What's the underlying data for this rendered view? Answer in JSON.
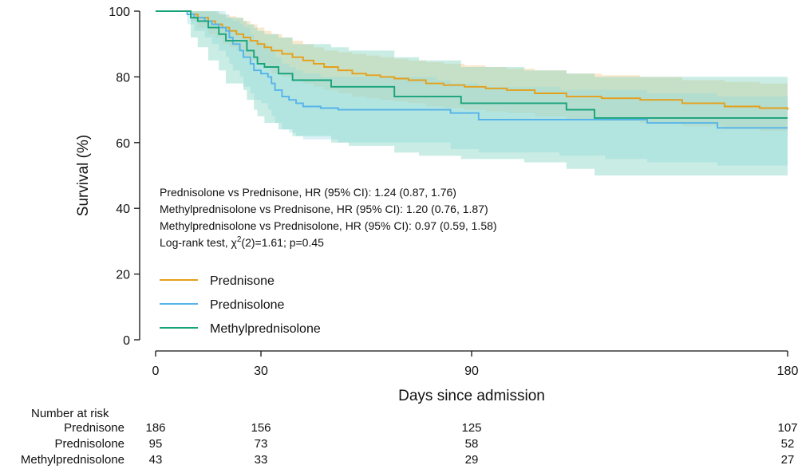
{
  "chart_data": {
    "type": "line",
    "title": "",
    "xlabel": "Days since admission",
    "ylabel": "Survival (%)",
    "xlim": [
      0,
      180
    ],
    "ylim": [
      0,
      100
    ],
    "x_ticks": [
      0,
      30,
      90,
      180
    ],
    "y_ticks": [
      0,
      20,
      40,
      60,
      80,
      100
    ],
    "grid": false,
    "legend_position": "bottom-left inside",
    "series": [
      {
        "name": "Prednisone",
        "color": "#E69F1A",
        "band_color": "#F2C98A",
        "x": [
          0,
          7,
          10,
          12,
          15,
          17,
          19,
          21,
          23,
          25,
          27,
          29,
          31,
          33,
          36,
          39,
          42,
          45,
          48,
          52,
          56,
          60,
          64,
          68,
          72,
          77,
          82,
          88,
          94,
          100,
          108,
          117,
          127,
          138,
          150,
          162,
          172,
          180
        ],
        "y": [
          100,
          100,
          99,
          98,
          97,
          96,
          95,
          94,
          93,
          92,
          91,
          90,
          89,
          88,
          87,
          86,
          85,
          84,
          83,
          82,
          81,
          80.5,
          80,
          79.5,
          79,
          78,
          77.5,
          77,
          76.5,
          76,
          75,
          74,
          73.5,
          73,
          72,
          71,
          70.5,
          70
        ],
        "lower": [
          100,
          100,
          97,
          95,
          93,
          92,
          90,
          89,
          88,
          86,
          85,
          84,
          83,
          81,
          80,
          79,
          78,
          77,
          76,
          75,
          74,
          73.5,
          73,
          72.5,
          72,
          71,
          70.5,
          70,
          69.5,
          69,
          68,
          67,
          66.5,
          66,
          65,
          64,
          63.5,
          63
        ],
        "upper": [
          100,
          100,
          100,
          100,
          100,
          99.5,
          99,
          98.5,
          98,
          97,
          96,
          95,
          94,
          93,
          92,
          91,
          90,
          89,
          88,
          87.5,
          87,
          86.5,
          86,
          85.5,
          85,
          84.5,
          84,
          83.5,
          83,
          82.5,
          82,
          81,
          80.5,
          80,
          79,
          78.5,
          78,
          77.5
        ]
      },
      {
        "name": "Prednisolone",
        "color": "#56B4E9",
        "band_color": "#A8DDEE",
        "x": [
          0,
          7,
          9,
          11,
          14,
          16,
          18,
          20,
          21,
          22,
          24,
          25,
          27,
          28,
          30,
          32,
          33,
          34,
          36,
          38,
          40,
          42,
          47,
          52,
          60,
          80,
          84,
          92,
          115,
          128,
          140,
          160,
          180
        ],
        "y": [
          100,
          100,
          99,
          98,
          97,
          96,
          95,
          94,
          92,
          90,
          88,
          86,
          84,
          82,
          81,
          80,
          78,
          76,
          74,
          73,
          72,
          71,
          70.5,
          70,
          70,
          70,
          69,
          67,
          67,
          67,
          66,
          64.5,
          64.5
        ],
        "lower": [
          100,
          100,
          96,
          94,
          92,
          90,
          88,
          86,
          84,
          82,
          80,
          77,
          75,
          73,
          72,
          70,
          68,
          66,
          64,
          63,
          62,
          61,
          61,
          60,
          60,
          60,
          58,
          57,
          56,
          55,
          54,
          53,
          52
        ],
        "upper": [
          100,
          100,
          100,
          100,
          100,
          100,
          100,
          99,
          98,
          97,
          96,
          95,
          93,
          91,
          90,
          89,
          88,
          86,
          84,
          83,
          82,
          81,
          80,
          80,
          80,
          79,
          78,
          77,
          76,
          76,
          75,
          74,
          74
        ]
      },
      {
        "name": "Methylprednisolone",
        "color": "#17A37A",
        "band_color": "#7FD3BE",
        "x": [
          0,
          8,
          10,
          12,
          15,
          18,
          20,
          25,
          26,
          28,
          29,
          31,
          35,
          39,
          50,
          55,
          68,
          75,
          87,
          105,
          117,
          125,
          180
        ],
        "y": [
          100,
          100,
          98,
          97,
          95,
          93,
          91,
          91,
          88,
          86,
          84,
          83,
          81,
          79,
          77,
          77,
          74,
          74,
          72,
          72,
          70,
          67.5,
          67.5
        ],
        "lower": [
          100,
          100,
          92,
          89,
          85,
          82,
          78,
          76,
          73,
          70,
          68,
          66,
          64,
          62,
          60,
          59,
          57,
          56,
          55,
          54,
          52,
          50,
          50
        ],
        "upper": [
          100,
          100,
          100,
          100,
          100,
          99,
          98,
          97,
          96,
          95,
          94,
          93,
          92,
          90,
          89,
          88,
          86,
          85,
          83,
          82,
          81,
          80,
          80
        ]
      }
    ],
    "annotations": [
      "Prednisolone vs Prednisone, HR (95% CI): 1.24 (0.87, 1.76)",
      "Methylprednisolone vs Prednisone, HR (95% CI): 1.20 (0.76, 1.87)",
      "Methylprednisolone vs Prednisolone, HR (95% CI): 0.97 (0.59, 1.58)"
    ],
    "logrank": {
      "prefix": "Log-rank test, χ",
      "superscript": "2",
      "suffix": "(2)=1.61; p=0.45"
    },
    "risk_table": {
      "title": "Number at risk",
      "times": [
        0,
        30,
        90,
        180
      ],
      "rows": [
        {
          "name": "Prednisone",
          "values": [
            "186",
            "156",
            "125",
            "107"
          ]
        },
        {
          "name": "Prednisolone",
          "values": [
            "95",
            "73",
            "58",
            "52"
          ]
        },
        {
          "name": "Methylprednisolone",
          "values": [
            "43",
            "33",
            "29",
            "27"
          ]
        }
      ]
    }
  }
}
